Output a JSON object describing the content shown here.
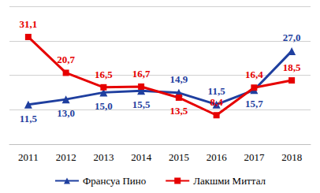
{
  "chart_data": {
    "type": "line",
    "categories": [
      "2011",
      "2012",
      "2013",
      "2014",
      "2015",
      "2016",
      "2017",
      "2018"
    ],
    "series": [
      {
        "name": "Франсуа Пино",
        "color": "#1f3f9f",
        "marker": "triangle",
        "line_style": "solid",
        "values": [
          11.5,
          13.0,
          15.0,
          15.5,
          14.9,
          11.5,
          15.7,
          27.0
        ],
        "value_labels": [
          "11,5",
          "13,0",
          "15,0",
          "15,5",
          "14,9",
          "11,5",
          "15,7",
          "27,0"
        ]
      },
      {
        "name": "Лакшми Миттал",
        "color": "#e60000",
        "marker": "square",
        "line_style": "solid",
        "values": [
          31.1,
          20.7,
          16.5,
          16.7,
          13.5,
          8.4,
          16.4,
          18.5
        ],
        "value_labels": [
          "31,1",
          "20,7",
          "16,5",
          "16,7",
          "13,5",
          "8,4",
          "16,4",
          "18,5"
        ]
      }
    ],
    "ylim": [
      0,
      40
    ],
    "yticks": [
      0,
      10,
      20,
      30,
      40
    ],
    "grid": true,
    "legend": "bottom",
    "data_labels": true,
    "tick_labels": "x"
  }
}
